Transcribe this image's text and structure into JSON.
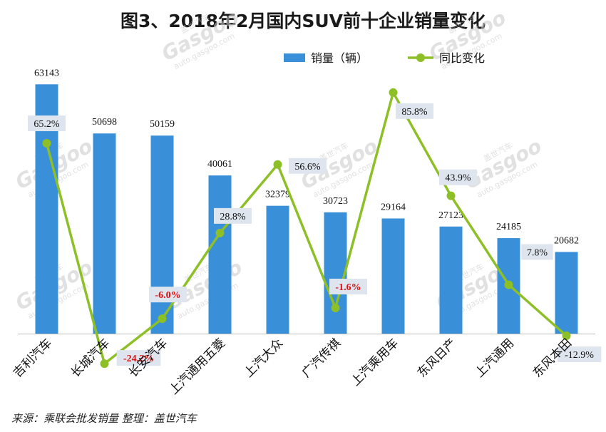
{
  "title": "图3、2018年2月国内SUV前十企业销量变化",
  "source": "来源：乘联会批发销量   整理：盖世汽车",
  "watermark": {
    "top": "盖世汽车",
    "brand": "Gasgoo",
    "url": "auto.gasgoo.com"
  },
  "colors": {
    "bar": "#3a8fd9",
    "line": "#8dbf26",
    "label_box": "#dfe5ee",
    "negative": "#e01010"
  },
  "chart_data": {
    "type": "bar",
    "categories": [
      "吉利汽车",
      "长城汽车",
      "长安汽车",
      "上汽通用五菱",
      "上汽大众",
      "广汽传祺",
      "上汽乘用车",
      "东风日产",
      "上汽通用",
      "东风本田"
    ],
    "series": [
      {
        "name": "销量（辆）",
        "type": "bar",
        "axis": "left",
        "values": [
          63143,
          50698,
          50159,
          40061,
          32379,
          30723,
          29164,
          27123,
          24185,
          20682
        ]
      },
      {
        "name": "同比变化",
        "type": "line",
        "axis": "right",
        "values": [
          65.2,
          -24.2,
          -6.0,
          28.8,
          56.6,
          -1.6,
          85.8,
          43.9,
          7.8,
          -12.9
        ],
        "labels": [
          "65.2%",
          "-24.2%",
          "-6.0%",
          "28.8%",
          "56.6%",
          "-1.6%",
          "85.8%",
          "43.9%",
          "7.8%",
          "-12.9%"
        ]
      }
    ],
    "ylim_left": [
      0,
      65000
    ],
    "ylim_right": [
      -45,
      95
    ],
    "grid": false,
    "legend": "top"
  }
}
